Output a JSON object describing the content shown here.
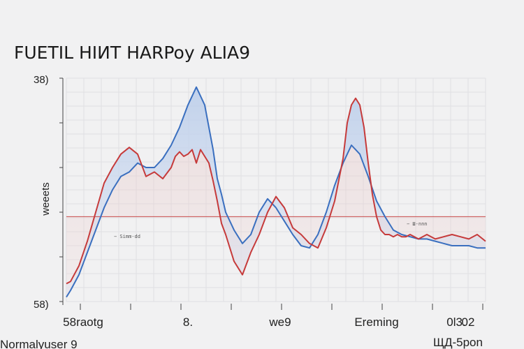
{
  "chart_data": {
    "type": "area",
    "title": "FUETIL HIИT HARPoy ALIA9",
    "ylabel": "weeets",
    "y_tick_top": "38)",
    "y_tick_bottom": "58)",
    "bottom_left_text": "Normalyuser 9",
    "bottom_right_text": "ЩД-5pon",
    "annotations": [
      "− Simm-dd",
      "− Ш-nnn"
    ],
    "xlim": [
      0,
      100
    ],
    "ylim": [
      0,
      100
    ],
    "reference_line": 38,
    "x_tick_labels": [
      {
        "x": 4,
        "label": "58raotg"
      },
      {
        "x": 29,
        "label": "8."
      },
      {
        "x": 51,
        "label": "we9"
      },
      {
        "x": 74,
        "label": "Ereming"
      },
      {
        "x": 93,
        "label": "0l3."
      },
      {
        "x": 113,
        "label": "02"
      }
    ],
    "series": [
      {
        "color": "#c63a3a",
        "x": [
          0,
          1,
          3,
          5,
          7,
          9,
          11,
          13,
          15,
          17,
          19,
          21,
          23,
          25,
          26,
          27,
          28,
          29,
          30,
          31,
          32,
          33,
          34,
          35,
          36,
          37,
          38,
          40,
          42,
          44,
          46,
          48,
          50,
          52,
          54,
          56,
          58,
          60,
          62,
          64,
          66,
          67,
          68,
          69,
          70,
          71,
          72,
          73,
          74,
          75,
          76,
          77,
          78,
          79,
          80,
          81,
          82,
          84,
          86,
          88,
          90,
          92,
          94,
          96,
          98,
          100
        ],
        "y": [
          8,
          9,
          16,
          27,
          40,
          53,
          60,
          66,
          69,
          66,
          56,
          58,
          55,
          60,
          65,
          67,
          65,
          66,
          68,
          62,
          68,
          65,
          62,
          54,
          45,
          35,
          30,
          18,
          12,
          22,
          30,
          40,
          47,
          42,
          33,
          30,
          26,
          24,
          33,
          45,
          64,
          80,
          88,
          91,
          88,
          78,
          62,
          48,
          38,
          32,
          30,
          30,
          29,
          30,
          29,
          29,
          30,
          28,
          30,
          28,
          29,
          30,
          29,
          28,
          30,
          27
        ]
      },
      {
        "color": "#3a6fbf",
        "x": [
          0,
          1,
          3,
          5,
          7,
          9,
          11,
          13,
          15,
          17,
          19,
          21,
          23,
          25,
          27,
          29,
          31,
          33,
          35,
          36,
          37,
          38,
          40,
          42,
          44,
          46,
          48,
          50,
          52,
          54,
          56,
          58,
          60,
          62,
          64,
          66,
          68,
          70,
          72,
          74,
          76,
          78,
          80,
          82,
          84,
          86,
          88,
          90,
          92,
          94,
          96,
          98,
          100
        ],
        "y": [
          2,
          5,
          12,
          22,
          32,
          42,
          50,
          56,
          58,
          62,
          60,
          60,
          64,
          70,
          78,
          88,
          96,
          88,
          68,
          55,
          48,
          40,
          32,
          26,
          30,
          40,
          46,
          42,
          36,
          30,
          25,
          24,
          30,
          40,
          52,
          62,
          70,
          66,
          56,
          45,
          38,
          32,
          30,
          29,
          28,
          28,
          27,
          26,
          25,
          25,
          25,
          24,
          24
        ]
      }
    ]
  }
}
